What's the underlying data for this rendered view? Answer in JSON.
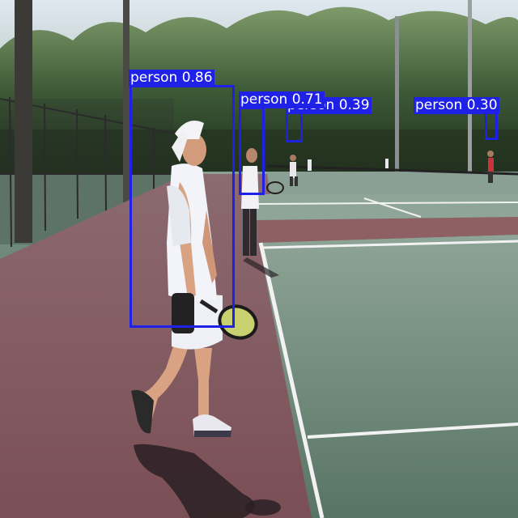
{
  "image": {
    "description_colors": {
      "box": "#1f22e6",
      "label_text": "#ffffff"
    }
  },
  "detections": [
    {
      "class": "person",
      "score": "0.86"
    },
    {
      "class": "person",
      "score": "0.71"
    },
    {
      "class": "person",
      "score": "0.39"
    },
    {
      "class": "person",
      "score": "0.30"
    }
  ]
}
